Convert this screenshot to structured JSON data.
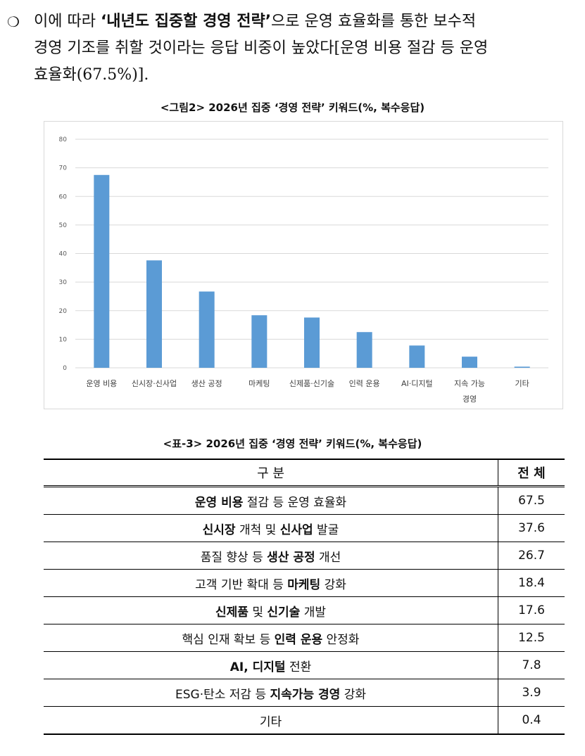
{
  "paragraph": {
    "bullet": "❍",
    "line1_pre": "이에 따라 ",
    "line1_bold": "‘내년도 집중할 경영 전략’",
    "line1_post": "으로 운영 효율화를 통한 보수적",
    "line2": "경영 기조를 취할 것이라는 응답 비중이 높았다[운영 비용 절감 등 운영",
    "line3": "효율화(67.5%)]."
  },
  "figure_caption": "<그림2> 2026년 집중 ‘경영 전략’ 키워드(%, 복수응답)",
  "table_caption": "<표-3> 2026년 집중 ‘경영 전략’ 키워드(%, 복수응답)",
  "chart_data": {
    "type": "bar",
    "title": "",
    "xlabel": "",
    "ylabel": "",
    "ylim": [
      0,
      80
    ],
    "yticks": [
      0,
      10,
      20,
      30,
      40,
      50,
      60,
      70,
      80
    ],
    "grid": true,
    "legend": "none",
    "bar_color": "#5b9bd5",
    "categories": [
      "운영 비용",
      "신시장·신사업",
      "생산 공정",
      "마케팅",
      "신제품·신기술",
      "인력 운용",
      "AI·디지털",
      "지속 가능 경영",
      "기타"
    ],
    "category_lines": [
      [
        "운영 비용"
      ],
      [
        "신시장·신사업"
      ],
      [
        "생산 공정"
      ],
      [
        "마케팅"
      ],
      [
        "신제품·신기술"
      ],
      [
        "인력 운용"
      ],
      [
        "AI·디지털"
      ],
      [
        "지속 가능",
        "경영"
      ],
      [
        "기타"
      ]
    ],
    "values": [
      67.5,
      37.6,
      26.7,
      18.4,
      17.6,
      12.5,
      7.8,
      3.9,
      0.4
    ]
  },
  "table": {
    "header": {
      "col1": "구 분",
      "col2": "전 체"
    },
    "rows": [
      {
        "parts": [
          {
            "t": "운영 비용",
            "b": true
          },
          {
            "t": " 절감 등 운영 효율화",
            "b": false
          }
        ],
        "value": "67.5"
      },
      {
        "parts": [
          {
            "t": "신시장",
            "b": true
          },
          {
            "t": " 개척 및 ",
            "b": false
          },
          {
            "t": "신사업",
            "b": true
          },
          {
            "t": " 발굴",
            "b": false
          }
        ],
        "value": "37.6"
      },
      {
        "parts": [
          {
            "t": "품질 향상 등 ",
            "b": false
          },
          {
            "t": "생산 공정",
            "b": true
          },
          {
            "t": " 개선",
            "b": false
          }
        ],
        "value": "26.7"
      },
      {
        "parts": [
          {
            "t": "고객 기반 확대 등 ",
            "b": false
          },
          {
            "t": "마케팅",
            "b": true
          },
          {
            "t": " 강화",
            "b": false
          }
        ],
        "value": "18.4"
      },
      {
        "parts": [
          {
            "t": "신제품",
            "b": true
          },
          {
            "t": " 및 ",
            "b": false
          },
          {
            "t": "신기술",
            "b": true
          },
          {
            "t": " 개발",
            "b": false
          }
        ],
        "value": "17.6"
      },
      {
        "parts": [
          {
            "t": "핵심 인재 확보 등 ",
            "b": false
          },
          {
            "t": "인력 운용",
            "b": true
          },
          {
            "t": " 안정화",
            "b": false
          }
        ],
        "value": "12.5"
      },
      {
        "parts": [
          {
            "t": "AI, 디지털",
            "b": true
          },
          {
            "t": " 전환",
            "b": false
          }
        ],
        "value": "7.8"
      },
      {
        "parts": [
          {
            "t": "ESG·탄소 저감 등 ",
            "b": false
          },
          {
            "t": "지속가능 경영",
            "b": true
          },
          {
            "t": " 강화",
            "b": false
          }
        ],
        "value": "3.9"
      },
      {
        "parts": [
          {
            "t": "기타",
            "b": false
          }
        ],
        "value": "0.4"
      }
    ]
  }
}
